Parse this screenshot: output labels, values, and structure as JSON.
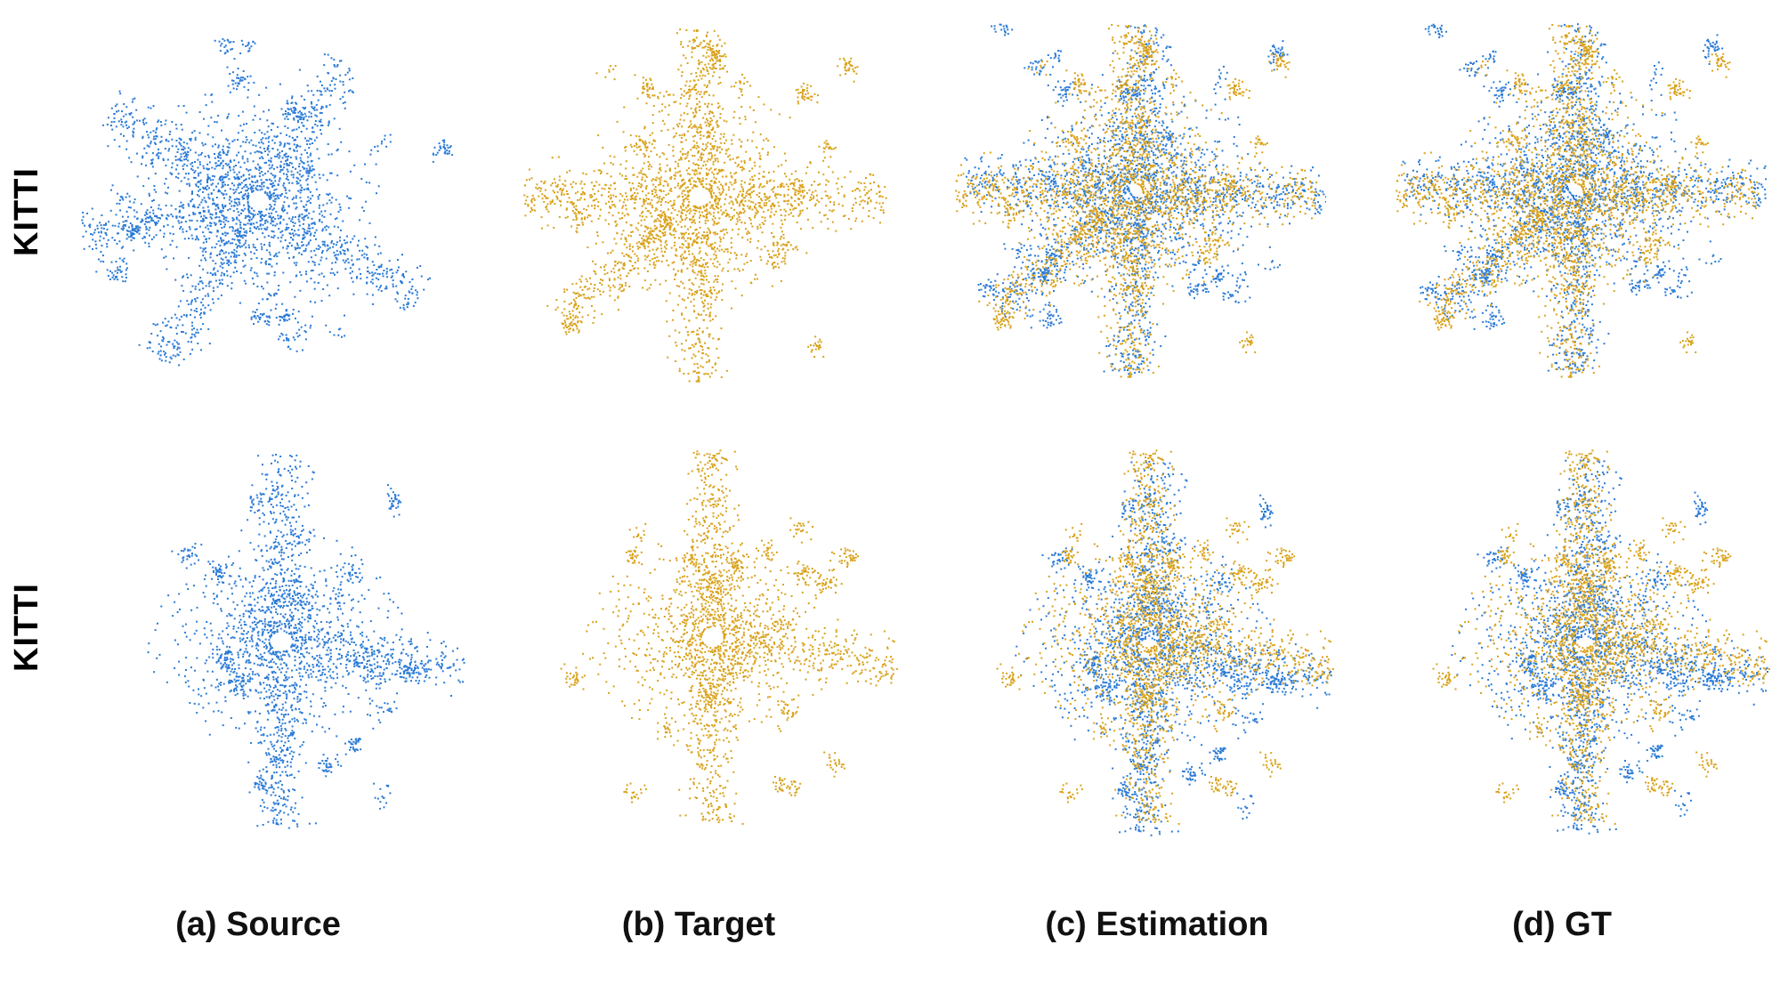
{
  "row_labels": [
    "KITTI",
    "KITTI"
  ],
  "column_labels": [
    "(a) Source",
    "(b) Target",
    "(c) Estimation",
    "(d) GT"
  ],
  "colors": {
    "source": "#2b7bd6",
    "target": "#d9a21b",
    "background": "#ffffff"
  },
  "panels": [
    {
      "row": 0,
      "col": 0,
      "content": "source"
    },
    {
      "row": 0,
      "col": 1,
      "content": "target"
    },
    {
      "row": 0,
      "col": 2,
      "content": "source+target"
    },
    {
      "row": 0,
      "col": 3,
      "content": "source+target"
    },
    {
      "row": 1,
      "col": 0,
      "content": "source"
    },
    {
      "row": 1,
      "col": 1,
      "content": "target"
    },
    {
      "row": 1,
      "col": 2,
      "content": "source+target"
    },
    {
      "row": 1,
      "col": 3,
      "content": "source+target"
    }
  ]
}
